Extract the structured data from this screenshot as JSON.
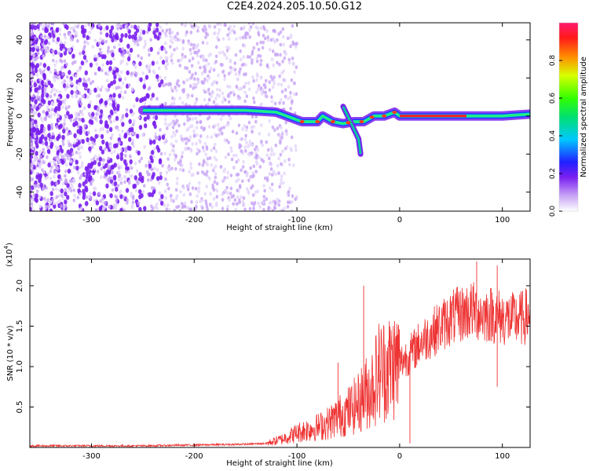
{
  "title": "C2E4.2024.205.10.50.G12",
  "chart_data": [
    {
      "type": "heatmap",
      "xlabel": "Height of straight line (km)",
      "ylabel": "Frequency (Hz)",
      "xlim": [
        -360,
        127
      ],
      "ylim": [
        -50,
        49
      ],
      "xticks": [
        -300,
        -200,
        -100,
        0,
        100
      ],
      "xtick_labels": [
        "-300",
        "-200",
        "-100",
        "0",
        "100"
      ],
      "yticks": [
        -40,
        -20,
        0,
        20,
        40
      ],
      "ytick_labels": [
        "-40",
        "-20",
        "0",
        "20",
        "40"
      ],
      "colorbar": {
        "label": "Normalized spectral amplitude",
        "range": [
          0,
          1
        ],
        "ticks": [
          0.0,
          0.2,
          0.4,
          0.6,
          0.8
        ],
        "tick_labels": [
          "0.0",
          "0.2",
          "0.4",
          "0.6",
          "0.8"
        ]
      },
      "ridge": [
        {
          "x": -250,
          "f": 3
        },
        {
          "x": -200,
          "f": 3
        },
        {
          "x": -150,
          "f": 3
        },
        {
          "x": -120,
          "f": 2
        },
        {
          "x": -95,
          "f": -3
        },
        {
          "x": -80,
          "f": -3
        },
        {
          "x": -75,
          "f": 0
        },
        {
          "x": -65,
          "f": -3
        },
        {
          "x": -55,
          "f": -4
        },
        {
          "x": -45,
          "f": -3
        },
        {
          "x": -35,
          "f": -3
        },
        {
          "x": -25,
          "f": 0
        },
        {
          "x": -15,
          "f": 0
        },
        {
          "x": -5,
          "f": 2
        },
        {
          "x": 0,
          "f": 0
        },
        {
          "x": 40,
          "f": 0
        },
        {
          "x": 65,
          "f": 0
        },
        {
          "x": 100,
          "f": 0
        },
        {
          "x": 127,
          "f": 1
        }
      ],
      "ridge_peak_range": [
        0,
        65
      ],
      "spur": [
        {
          "x": -55,
          "f": 5
        },
        {
          "x": -40,
          "f": -12
        },
        {
          "x": -38,
          "f": -20
        }
      ],
      "noise_region_x": [
        -360,
        -130
      ]
    },
    {
      "type": "line",
      "xlabel": "Height of straight line (km)",
      "ylabel": "SNR (10 * v/v)",
      "multiplier_label": "(x10",
      "multiplier_exp": "4",
      "multiplier_close": ")",
      "xlim": [
        -360,
        127
      ],
      "ylim": [
        0,
        2.33
      ],
      "xticks": [
        -300,
        -200,
        -100,
        0,
        100
      ],
      "xtick_labels": [
        "-300",
        "-200",
        "-100",
        "0",
        "100"
      ],
      "yticks": [
        0.5,
        1.0,
        1.5,
        2.0
      ],
      "ytick_labels": [
        "0.5",
        "1.0",
        "1.5",
        "2.0"
      ],
      "color": "#ee3333",
      "series": [
        {
          "name": "SNR",
          "x": [
            -360,
            -300,
            -250,
            -200,
            -150,
            -130,
            -115,
            -100,
            -90,
            -80,
            -70,
            -60,
            -50,
            -40,
            -35,
            -30,
            -25,
            -20,
            -10,
            0,
            10,
            20,
            30,
            40,
            50,
            60,
            70,
            80,
            90,
            100,
            110,
            120,
            127
          ],
          "y": [
            0.02,
            0.02,
            0.02,
            0.03,
            0.04,
            0.05,
            0.1,
            0.18,
            0.22,
            0.25,
            0.3,
            0.38,
            0.45,
            0.55,
            0.65,
            0.7,
            0.8,
            0.95,
            1.0,
            1.05,
            1.15,
            1.3,
            1.4,
            1.5,
            1.6,
            1.65,
            1.7,
            1.65,
            1.65,
            1.6,
            1.58,
            1.6,
            1.65
          ]
        }
      ]
    }
  ],
  "colors": {
    "spectrum_low": "#dcc8f7",
    "spectrum_mid": "#7a1ff0",
    "line": "#ee3333"
  }
}
